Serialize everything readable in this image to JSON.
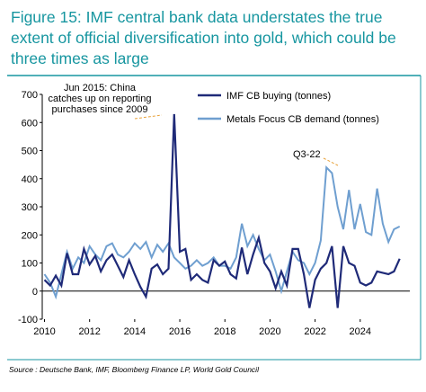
{
  "chart_data": {
    "type": "line",
    "title": "Figure 15: IMF central bank data understates the true extent of official diversification into gold, which could be three times as large",
    "x": [
      2010.0,
      2010.25,
      2010.5,
      2010.75,
      2011.0,
      2011.25,
      2011.5,
      2011.75,
      2012.0,
      2012.25,
      2012.5,
      2012.75,
      2013.0,
      2013.25,
      2013.5,
      2013.75,
      2014.0,
      2014.25,
      2014.5,
      2014.75,
      2015.0,
      2015.25,
      2015.5,
      2015.75,
      2016.0,
      2016.25,
      2016.5,
      2016.75,
      2017.0,
      2017.25,
      2017.5,
      2017.75,
      2018.0,
      2018.25,
      2018.5,
      2018.75,
      2019.0,
      2019.25,
      2019.5,
      2019.75,
      2020.0,
      2020.25,
      2020.5,
      2020.75,
      2021.0,
      2021.25,
      2021.5,
      2021.75,
      2022.0,
      2022.25,
      2022.5,
      2022.75,
      2023.0,
      2023.25,
      2023.5,
      2023.75,
      2024.0,
      2024.25,
      2024.5,
      2024.75,
      2025.0,
      2025.25,
      2025.5,
      2025.75
    ],
    "series": [
      {
        "name": "IMF CB buying (tonnes)",
        "color": "#1f2a78",
        "values": [
          40,
          20,
          55,
          20,
          135,
          60,
          60,
          150,
          95,
          125,
          70,
          110,
          130,
          90,
          50,
          110,
          60,
          15,
          -20,
          80,
          95,
          60,
          80,
          630,
          140,
          150,
          40,
          60,
          40,
          30,
          110,
          90,
          105,
          60,
          45,
          155,
          60,
          130,
          190,
          100,
          70,
          10,
          70,
          20,
          150,
          150,
          60,
          -60,
          40,
          80,
          100,
          160,
          -60,
          160,
          100,
          90,
          30,
          20,
          30,
          70,
          65,
          60,
          70,
          115
        ]
      },
      {
        "name": "Metals Focus CB demand (tonnes)",
        "color": "#6f9fd0",
        "values": [
          60,
          30,
          -20,
          60,
          140,
          80,
          120,
          100,
          160,
          130,
          110,
          160,
          170,
          130,
          120,
          140,
          170,
          150,
          175,
          120,
          165,
          140,
          170,
          120,
          100,
          80,
          90,
          110,
          90,
          100,
          120,
          90,
          90,
          80,
          120,
          240,
          160,
          200,
          150,
          110,
          130,
          70,
          0,
          70,
          140,
          110,
          100,
          60,
          100,
          180,
          440,
          420,
          300,
          220,
          360,
          220,
          310,
          210,
          200,
          365,
          240,
          175,
          220,
          230
        ]
      }
    ],
    "xlim": [
      2009.9,
      2026.2
    ],
    "xticks": [
      2010,
      2012,
      2014,
      2016,
      2018,
      2020,
      2022,
      2024
    ],
    "ylim": [
      -100,
      700
    ],
    "yticks": [
      -100,
      0,
      100,
      200,
      300,
      400,
      500,
      600,
      700
    ],
    "grid": false,
    "legend": "top-right",
    "annotations": [
      "Jun 2015: China catches up on reporting purchases since 2009",
      "Q3-22"
    ],
    "source": "Source : Deutsche Bank, IMF, Bloomberg Finance LP, World Gold Council"
  }
}
